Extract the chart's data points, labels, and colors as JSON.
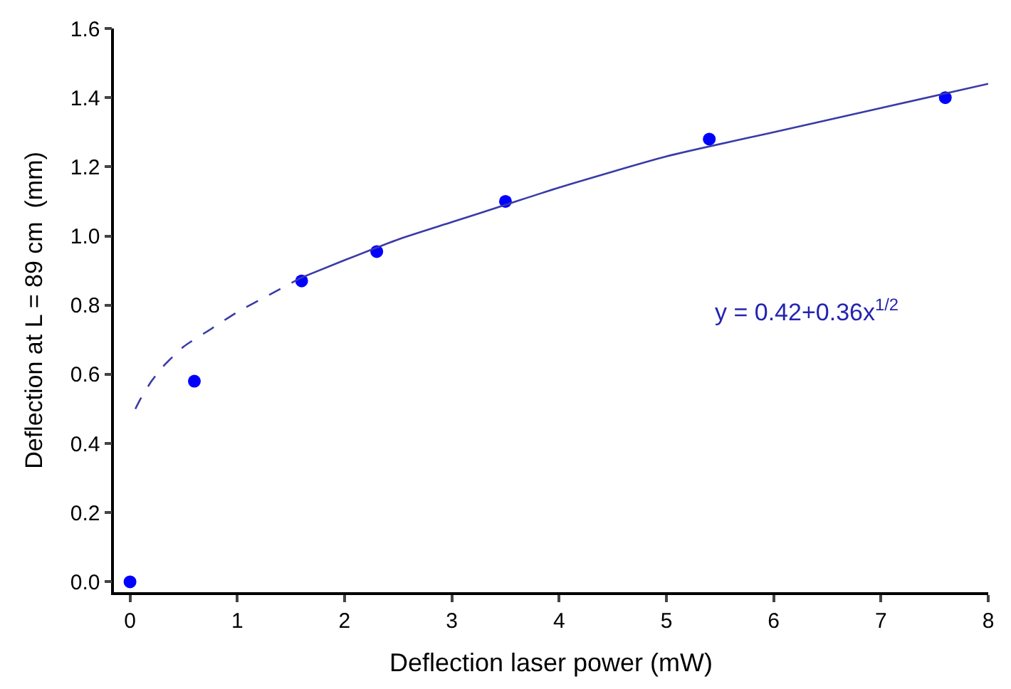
{
  "chart_data": {
    "type": "scatter",
    "xlabel": "Deflection laser power (mW)",
    "ylabel": "Deflection at L = 89 cm  (mm)",
    "xlim": [
      -0.15,
      8
    ],
    "ylim": [
      -0.03,
      1.6
    ],
    "xticks": [
      0,
      1,
      2,
      3,
      4,
      5,
      6,
      7,
      8
    ],
    "yticks": [
      {
        "value": 0,
        "label": "0.0"
      },
      {
        "value": 0.2,
        "label": "0.2"
      },
      {
        "value": 0.4,
        "label": "0.4"
      },
      {
        "value": 0.6,
        "label": "0.6"
      },
      {
        "value": 0.8,
        "label": "0.8"
      },
      {
        "value": 1.0,
        "label": "1.0"
      },
      {
        "value": 1.2,
        "label": "1.2"
      },
      {
        "value": 1.4,
        "label": "1.4"
      },
      {
        "value": 1.6,
        "label": "1.6"
      }
    ],
    "legend": false,
    "annotations": [
      "y = 0.42+0.36x$^{1/2}$"
    ],
    "series": [
      {
        "marker": "circle",
        "color": "#0000ff",
        "x": [
          0,
          0.6,
          1.6,
          2.3,
          3.5,
          5.4,
          7.6
        ],
        "values": [
          0,
          0.58,
          0.87,
          0.955,
          1.1,
          1.28,
          1.4
        ]
      },
      {
        "type": "line",
        "marker": "none",
        "line_style": "dashed",
        "color": "#3a3aa8",
        "x": [
          0.05,
          0.1,
          0.2,
          0.3,
          0.5,
          0.75,
          1,
          1.3,
          1.6
        ],
        "values": [
          0.5,
          0.53,
          0.58,
          0.62,
          0.68,
          0.73,
          0.78,
          0.83,
          0.88
        ]
      },
      {
        "type": "line",
        "marker": "none",
        "line_style": "solid",
        "color": "#3a3aa8",
        "x": [
          1.6,
          2,
          2.5,
          3,
          3.5,
          4,
          5,
          6,
          7,
          8
        ],
        "values": [
          0.88,
          0.93,
          0.99,
          1.04,
          1.09,
          1.14,
          1.23,
          1.3,
          1.37,
          1.44
        ]
      }
    ]
  }
}
